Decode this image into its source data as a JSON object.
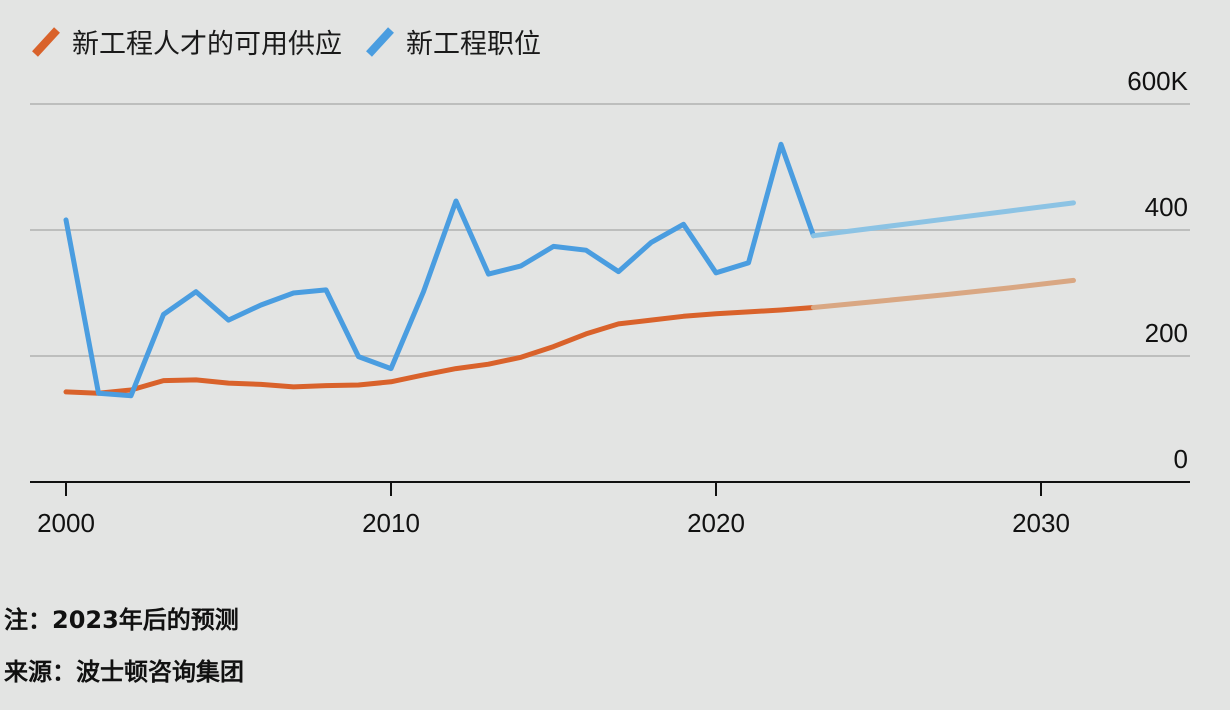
{
  "legend": [
    {
      "label": "新工程人才的可用供应",
      "color": "#d9622b"
    },
    {
      "label": "新工程职位",
      "color": "#4a9de0"
    }
  ],
  "notes": {
    "note_prefix": "注：",
    "note_text": "2023年后的预测",
    "source_prefix": "来源：",
    "source_text": "波士顿咨询集团"
  },
  "chart_data": {
    "type": "line",
    "title": "",
    "xlabel": "",
    "ylabel": "",
    "xlim": [
      1999,
      2035
    ],
    "ylim": [
      0,
      600
    ],
    "x_ticks": [
      2000,
      2010,
      2020,
      2030
    ],
    "x_tick_labels": [
      "2000",
      "2010",
      "2020",
      "2030"
    ],
    "y_ticks": [
      0,
      200,
      400,
      600
    ],
    "y_tick_labels": [
      "0",
      "200",
      "400",
      "600K"
    ],
    "grid": "horizontal",
    "legend_position": "top-left",
    "projection_note": "2023年后的预测",
    "series": [
      {
        "name": "新工程人才的可用供应",
        "color": "#d9622b",
        "projection_color": "#d9a783",
        "x": [
          2000,
          2001,
          2002,
          2003,
          2004,
          2005,
          2006,
          2007,
          2008,
          2009,
          2010,
          2011,
          2012,
          2013,
          2014,
          2015,
          2016,
          2017,
          2018,
          2019,
          2020,
          2021,
          2022,
          2023
        ],
        "values": [
          143,
          141,
          146,
          161,
          162,
          157,
          155,
          151,
          153,
          154,
          159,
          170,
          180,
          187,
          198,
          215,
          235,
          251,
          257,
          263,
          267,
          270,
          273,
          277
        ],
        "projection": {
          "x": [
            2023,
            2025,
            2027,
            2029,
            2031
          ],
          "values": [
            277,
            287,
            297,
            308,
            320
          ]
        }
      },
      {
        "name": "新工程职位",
        "color": "#4a9de0",
        "projection_color": "#8cc3e4",
        "x": [
          2000,
          2001,
          2002,
          2003,
          2004,
          2005,
          2006,
          2007,
          2008,
          2009,
          2010,
          2011,
          2012,
          2013,
          2014,
          2015,
          2016,
          2017,
          2018,
          2019,
          2020,
          2021,
          2022,
          2023
        ],
        "values": [
          416,
          141,
          137,
          266,
          302,
          257,
          281,
          300,
          305,
          199,
          180,
          302,
          446,
          330,
          343,
          374,
          368,
          334,
          380,
          409,
          332,
          348,
          536,
          391
        ],
        "projection": {
          "x": [
            2023,
            2025,
            2027,
            2029,
            2031
          ],
          "values": [
            391,
            404,
            417,
            430,
            443
          ]
        }
      }
    ]
  }
}
